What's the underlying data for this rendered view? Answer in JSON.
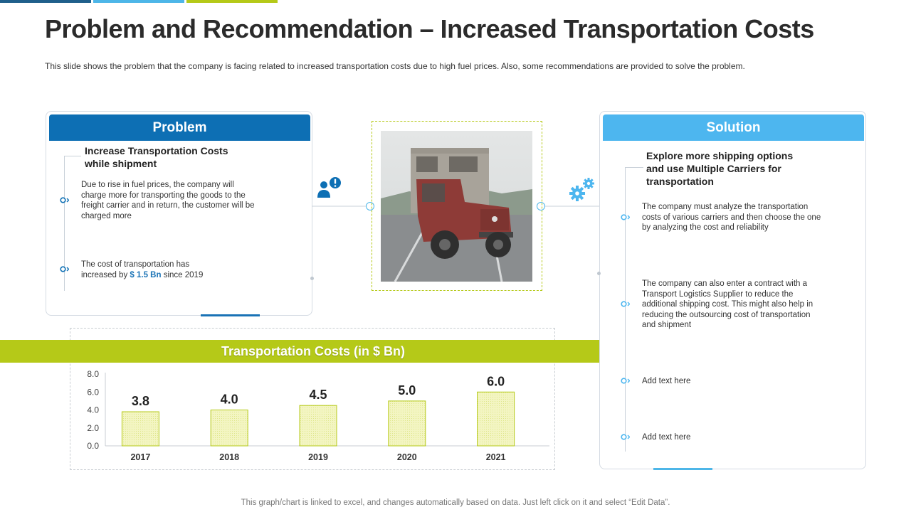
{
  "title": "Problem and Recommendation – Increased Transportation Costs",
  "subtitle": "This slide shows the problem that the company is facing related to increased transportation costs due to high fuel prices. Also, some recommendations are provided to solve the problem.",
  "problem": {
    "header": "Problem",
    "heading_line1": "Increase Transportation Costs",
    "heading_line2": "while shipment",
    "bullet1": [
      "Due to rise in fuel prices, the company will",
      "charge more for transporting the goods to the",
      "freight carrier and in return, the customer will be",
      "charged more"
    ],
    "bullet2_line1": "The cost of transportation has",
    "bullet2_prefix": "increased by ",
    "bullet2_value": "$ 1.5 Bn",
    "bullet2_suffix": "  since 2019"
  },
  "solution": {
    "header": "Solution",
    "heading": [
      "Explore more shipping options",
      "and use Multiple Carriers for",
      "transportation"
    ],
    "bullet1": [
      "The company must analyze the transportation",
      "costs of various carriers and then choose the one",
      "by analyzing the cost and reliability"
    ],
    "bullet2": [
      "The company can also enter a contract with a",
      "Transport Logistics Supplier to reduce the",
      "additional shipping cost. This might also help in",
      "reducing the outsourcing cost of transportation",
      "and shipment"
    ],
    "bullet3": "Add text here",
    "bullet4": "Add text here"
  },
  "icons": {
    "problem": "user-alert-icon",
    "solution": "gears-icon",
    "bullet": "chevron-circle-icon"
  },
  "colors": {
    "problem_blue": "#0d6fb4",
    "solution_blue": "#4db6ef",
    "accent_green": "#b5c918"
  },
  "chart_data": {
    "type": "bar",
    "title": "Transportation Costs (in $ Bn)",
    "categories": [
      "2017",
      "2018",
      "2019",
      "2020",
      "2021"
    ],
    "values": [
      3.8,
      4.0,
      4.5,
      5.0,
      6.0
    ],
    "data_labels": [
      "3.8",
      "4.0",
      "4.5",
      "5.0",
      "6.0"
    ],
    "yticks": [
      "0.0",
      "2.0",
      "4.0",
      "6.0",
      "8.0"
    ],
    "ylim": [
      0,
      8
    ],
    "grid": false,
    "legend": "none",
    "bar_fill": "#f3f5c2",
    "bar_stroke": "#b5c918"
  },
  "footer": "This graph/chart is linked to excel,  and changes automatically based on data. Just left click on it and select “Edit Data”."
}
